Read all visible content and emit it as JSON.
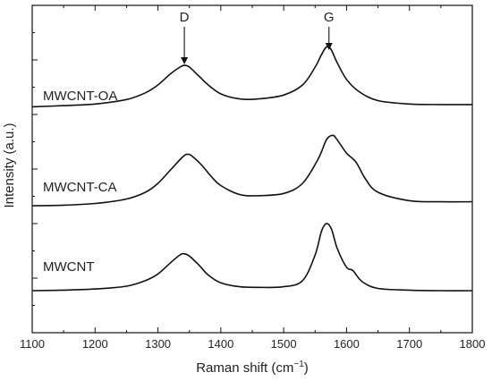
{
  "chart_data": {
    "type": "line",
    "title": "",
    "xlabel": "Raman shift (cm",
    "xlabel_sup": "−1",
    "xlabel_end": ")",
    "ylabel": "Intensity (a.u.)",
    "xlim": [
      1100,
      1800
    ],
    "x_ticks": [
      "1100",
      "1200",
      "1300",
      "1400",
      "1500",
      "1600",
      "1700",
      "1800"
    ],
    "y_ticks_labeled": false,
    "legend": "none",
    "grid": false,
    "annotations": [
      {
        "label": "D",
        "x": 1342
      },
      {
        "label": "G",
        "x": 1572
      }
    ],
    "series": [
      {
        "name": "MWCNT-OA",
        "x": [
          1100,
          1150,
          1200,
          1250,
          1280,
          1300,
          1320,
          1335,
          1342,
          1350,
          1365,
          1380,
          1400,
          1430,
          1460,
          1500,
          1530,
          1550,
          1560,
          1568,
          1575,
          1585,
          1600,
          1620,
          1650,
          1700,
          1750,
          1800
        ],
        "values": [
          0.165,
          0.175,
          0.19,
          0.23,
          0.29,
          0.36,
          0.46,
          0.52,
          0.535,
          0.52,
          0.44,
          0.36,
          0.28,
          0.235,
          0.235,
          0.27,
          0.36,
          0.52,
          0.63,
          0.7,
          0.68,
          0.56,
          0.41,
          0.3,
          0.22,
          0.19,
          0.185,
          0.185
        ]
      },
      {
        "name": "MWCNT-CA",
        "x": [
          1100,
          1150,
          1200,
          1250,
          1280,
          1300,
          1320,
          1340,
          1348,
          1355,
          1370,
          1385,
          1400,
          1430,
          1460,
          1500,
          1530,
          1555,
          1568,
          1578,
          1585,
          1600,
          1615,
          1630,
          1650,
          1700,
          1750,
          1800
        ],
        "values": [
          0.0,
          0.005,
          0.02,
          0.06,
          0.12,
          0.2,
          0.32,
          0.44,
          0.46,
          0.44,
          0.36,
          0.26,
          0.18,
          0.1,
          0.09,
          0.11,
          0.2,
          0.42,
          0.59,
          0.63,
          0.59,
          0.47,
          0.39,
          0.24,
          0.12,
          0.045,
          0.035,
          0.035
        ]
      },
      {
        "name": "MWCNT",
        "x": [
          1100,
          1150,
          1200,
          1250,
          1280,
          1300,
          1320,
          1335,
          1342,
          1350,
          1365,
          1380,
          1400,
          1430,
          1460,
          1500,
          1530,
          1550,
          1560,
          1568,
          1576,
          1585,
          1600,
          1610,
          1625,
          1650,
          1700,
          1750,
          1800
        ],
        "values": [
          0.0,
          0.005,
          0.015,
          0.04,
          0.09,
          0.15,
          0.25,
          0.32,
          0.33,
          0.31,
          0.23,
          0.14,
          0.07,
          0.035,
          0.03,
          0.035,
          0.09,
          0.32,
          0.53,
          0.6,
          0.55,
          0.38,
          0.21,
          0.18,
          0.08,
          0.02,
          0.005,
          0.0,
          0.0
        ]
      }
    ]
  }
}
